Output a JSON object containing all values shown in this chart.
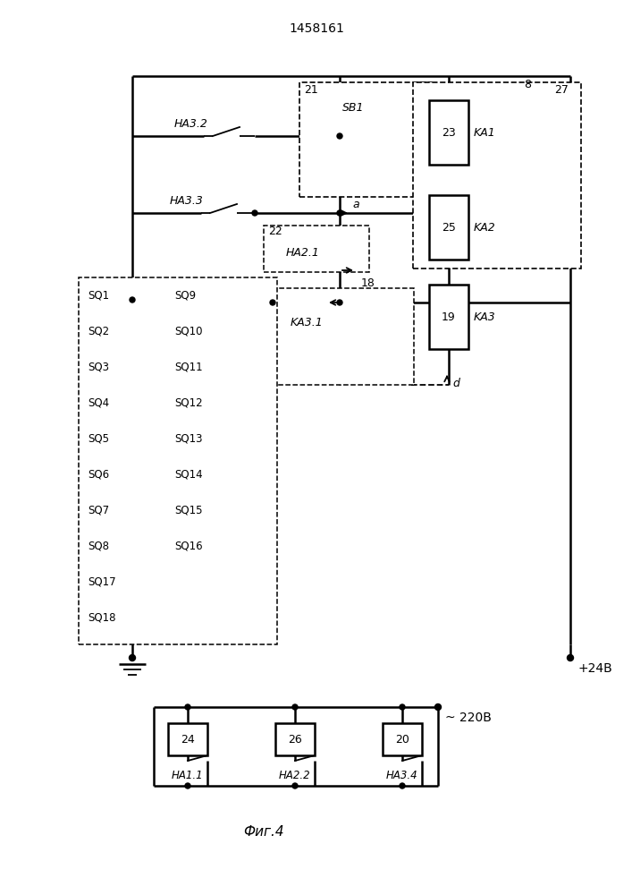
{
  "bg": "#ffffff",
  "lc": "#000000",
  "title": "1458161",
  "caption": "Фиг.4",
  "plus24v": "+24В",
  "v220": "~ 220В",
  "sq_left": [
    "SQ1",
    "SQ2",
    "SQ3",
    "SQ4",
    "SQ5",
    "SQ6",
    "SQ7",
    "SQ8"
  ],
  "sq_right": [
    "SQ9",
    "SQ10",
    "SQ11",
    "SQ12",
    "SQ13",
    "SQ14",
    "SQ15",
    "SQ16"
  ],
  "sq_single": [
    "SQ17",
    "SQ18"
  ]
}
